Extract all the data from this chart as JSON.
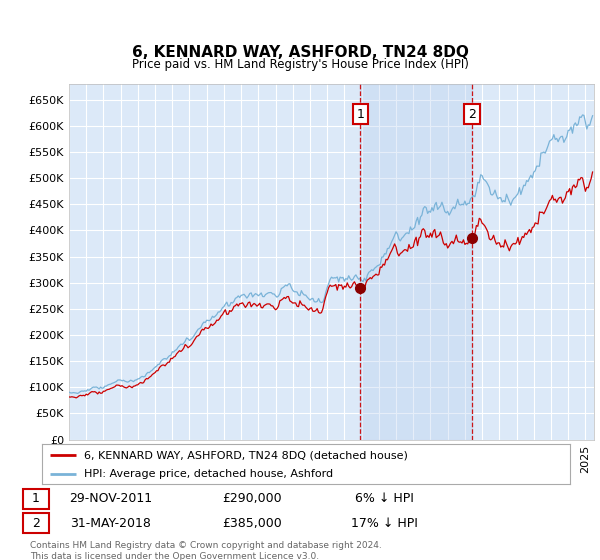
{
  "title": "6, KENNARD WAY, ASHFORD, TN24 8DQ",
  "subtitle": "Price paid vs. HM Land Registry's House Price Index (HPI)",
  "ylim": [
    0,
    680000
  ],
  "yticks": [
    0,
    50000,
    100000,
    150000,
    200000,
    250000,
    300000,
    350000,
    400000,
    450000,
    500000,
    550000,
    600000,
    650000
  ],
  "ytick_labels": [
    "£0",
    "£50K",
    "£100K",
    "£150K",
    "£200K",
    "£250K",
    "£300K",
    "£350K",
    "£400K",
    "£450K",
    "£500K",
    "£550K",
    "£600K",
    "£650K"
  ],
  "xlim_start": 1995.0,
  "xlim_end": 2025.5,
  "background_color": "#ffffff",
  "plot_bg_color": "#dce9f8",
  "grid_color": "#ffffff",
  "hpi_line_color": "#7ab3d8",
  "price_line_color": "#cc0000",
  "shade_color": "#c5d8f0",
  "sale1_x": 2011.92,
  "sale1_y": 290000,
  "sale2_x": 2018.42,
  "sale2_y": 385000,
  "legend_label1": "6, KENNARD WAY, ASHFORD, TN24 8DQ (detached house)",
  "legend_label2": "HPI: Average price, detached house, Ashford",
  "annotation1_date": "29-NOV-2011",
  "annotation1_price": "£290,000",
  "annotation1_hpi": "6% ↓ HPI",
  "annotation2_date": "31-MAY-2018",
  "annotation2_price": "£385,000",
  "annotation2_hpi": "17% ↓ HPI",
  "footer": "Contains HM Land Registry data © Crown copyright and database right 2024.\nThis data is licensed under the Open Government Licence v3.0."
}
